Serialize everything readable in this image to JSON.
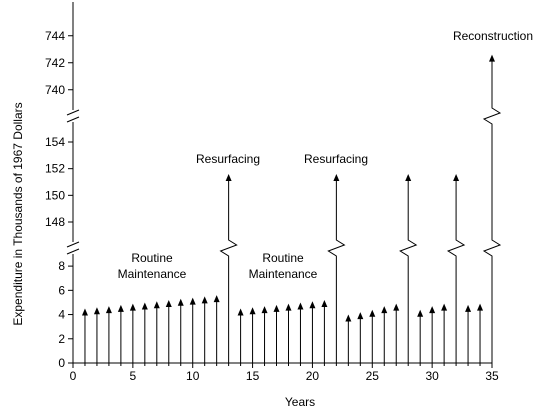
{
  "chart_data": {
    "type": "bar",
    "title": "",
    "xlabel": "Years",
    "ylabel": "Expenditure in Thousands of 1967 Dollars",
    "xlim": [
      0,
      35
    ],
    "x_ticks": [
      0,
      5,
      10,
      15,
      20,
      25,
      30,
      35
    ],
    "y_axis_segments": [
      {
        "range": [
          0,
          9
        ],
        "ticks": [
          0,
          2,
          4,
          6,
          8
        ]
      },
      {
        "range": [
          146.5,
          155.5
        ],
        "ticks": [
          148,
          150,
          152,
          154
        ]
      },
      {
        "range": [
          738.5,
          746.5
        ],
        "ticks": [
          740,
          742,
          744
        ]
      }
    ],
    "axis_breaks": true,
    "grid": false,
    "legend": "none",
    "series": [
      {
        "x": [
          1,
          2,
          3,
          4,
          5,
          6,
          7,
          8,
          9,
          10,
          11,
          12,
          14,
          15,
          16,
          17,
          18,
          19,
          20,
          21,
          23,
          24,
          25,
          26,
          27,
          29,
          30,
          31,
          33,
          34
        ],
        "values": [
          4.5,
          4.6,
          4.7,
          4.8,
          4.9,
          5.0,
          5.1,
          5.2,
          5.3,
          5.4,
          5.5,
          5.6,
          4.5,
          4.6,
          4.7,
          4.8,
          4.9,
          5.0,
          5.1,
          5.2,
          4.0,
          4.2,
          4.4,
          4.7,
          4.9,
          4.4,
          4.7,
          4.9,
          4.8,
          4.9
        ]
      },
      {
        "x": [
          13,
          22,
          28,
          32
        ],
        "values": [
          151.6,
          151.6,
          151.6,
          151.6
        ]
      },
      {
        "x": [
          35
        ],
        "values": [
          742.6
        ]
      }
    ],
    "annotations": [
      {
        "id": "routine-1",
        "lines": [
          "Routine",
          "Maintenance"
        ]
      },
      {
        "id": "routine-2",
        "lines": [
          "Routine",
          "Maintenance"
        ]
      },
      {
        "id": "resurfacing-1",
        "lines": [
          "Resurfacing"
        ]
      },
      {
        "id": "resurfacing-2",
        "lines": [
          "Resurfacing"
        ]
      },
      {
        "id": "reconstruction",
        "lines": [
          "Reconstruction"
        ]
      }
    ]
  }
}
